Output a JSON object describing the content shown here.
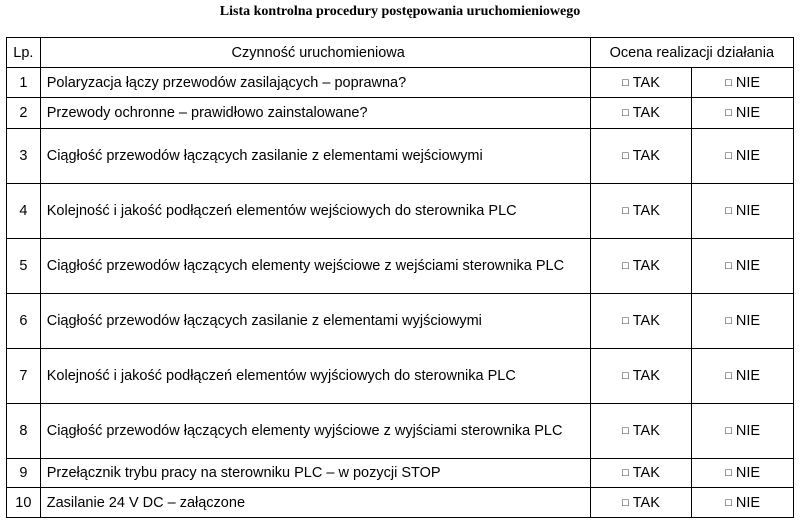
{
  "title": "Lista kontrolna procedury postępowania uruchomieniowego",
  "headers": {
    "lp": "Lp.",
    "activity": "Czynność uruchomieniowa",
    "evaluation": "Ocena realizacji działania"
  },
  "checkbox_glyph": "□",
  "yes_label": "TAK",
  "no_label": "NIE",
  "rows": [
    {
      "lp": "1",
      "text": "Polaryzacja łączy przewodów zasilających – poprawna?"
    },
    {
      "lp": "2",
      "text": "Przewody ochronne – prawidłowo zainstalowane?"
    },
    {
      "lp": "3",
      "text": "Ciągłość przewodów łączących zasilanie z elementami wejściowymi"
    },
    {
      "lp": "4",
      "text": "Kolejność i jakość podłączeń elementów wejściowych do sterownika PLC"
    },
    {
      "lp": "5",
      "text": "Ciągłość przewodów łączących elementy wejściowe z wejściami sterownika PLC"
    },
    {
      "lp": "6",
      "text": "Ciągłość przewodów łączących zasilanie z elementami wyjściowymi"
    },
    {
      "lp": "7",
      "text": "Kolejność i jakość podłączeń elementów wyjściowych do sterownika PLC"
    },
    {
      "lp": "8",
      "text": "Ciągłość przewodów łączących elementy wyjściowe z wyjściami sterownika PLC"
    },
    {
      "lp": "9",
      "text": "Przełącznik trybu pracy na sterowniku PLC – w pozycji STOP"
    },
    {
      "lp": "10",
      "text": "Zasilanie 24 V DC – załączone"
    }
  ]
}
